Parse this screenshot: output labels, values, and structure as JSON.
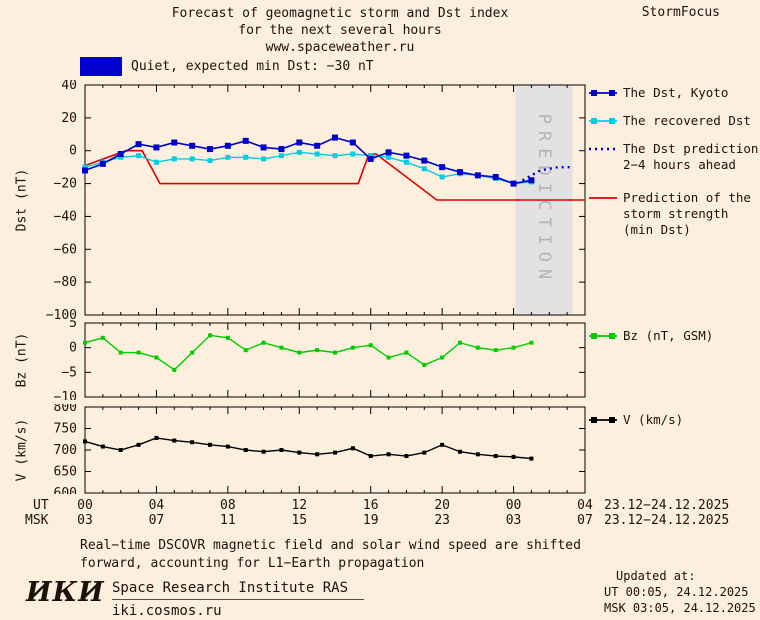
{
  "header": {
    "title_line1": "Forecast of geomagnetic storm and Dst index",
    "title_line2": "for the next several hours",
    "title_line3": "www.spaceweather.ru",
    "brand": "StormFocus"
  },
  "status": {
    "label": "Quiet, expected min Dst: −30 nT",
    "swatch_color": "#0000cc"
  },
  "chart_data": [
    {
      "id": "dst",
      "type": "line",
      "ylabel": "Dst (nT)",
      "ylim": [
        -100,
        40
      ],
      "yticks": [
        40,
        20,
        0,
        -20,
        -40,
        -60,
        -80,
        -100
      ],
      "ytick_labels": [
        "40",
        "20",
        "0",
        "−20",
        "−40",
        "−60",
        "−80",
        "−100"
      ],
      "xlim": [
        0,
        28
      ],
      "band": {
        "x0": 24.1,
        "x1": 27.3,
        "label": "PREDICTION",
        "color": "#e2e2e2",
        "text_color": "#b4b4b4"
      },
      "series": [
        {
          "name": "The Dst, Kyoto",
          "color": "#0000cc",
          "marker": "square",
          "msize": 6,
          "width": 1.6,
          "z": 3,
          "x": [
            0,
            1,
            2,
            3,
            4,
            5,
            6,
            7,
            8,
            9,
            10,
            11,
            12,
            13,
            14,
            15,
            16,
            17,
            18,
            19,
            20,
            21,
            22,
            23,
            24,
            25
          ],
          "y": [
            -12,
            -8,
            -2,
            4,
            2,
            5,
            3,
            1,
            3,
            6,
            2,
            1,
            5,
            3,
            8,
            5,
            -5,
            -1,
            -3,
            -6,
            -10,
            -13,
            -15,
            -16,
            -20,
            -18
          ]
        },
        {
          "name": "The recovered Dst",
          "color": "#00cfe0",
          "marker": "square",
          "msize": 5,
          "width": 1.4,
          "z": 2,
          "x": [
            0,
            1,
            2,
            3,
            4,
            5,
            6,
            7,
            8,
            9,
            10,
            11,
            12,
            13,
            14,
            15,
            16,
            17,
            18,
            19,
            20,
            21,
            22,
            23,
            24,
            25
          ],
          "y": [
            -10,
            -7,
            -4,
            -3,
            -7,
            -5,
            -5,
            -6,
            -4,
            -4,
            -5,
            -3,
            -1,
            -2,
            -3,
            -2,
            -3,
            -4,
            -7,
            -11,
            -16,
            -14,
            -15,
            -17,
            -20,
            -19
          ]
        },
        {
          "name": "The Dst prediction 2−4 hours ahead",
          "color": "#0000cc",
          "marker": null,
          "width": 2.4,
          "dash": "2,4",
          "z": 4,
          "x": [
            24.5,
            25.5,
            26.5,
            27.2
          ],
          "y": [
            -18,
            -12,
            -10,
            -10
          ]
        },
        {
          "name": "Prediction of the storm strength (min Dst)",
          "color": "#dd0000",
          "marker": null,
          "width": 1.6,
          "z": 1,
          "x": [
            0,
            2.3,
            3.2,
            4.2,
            15.3,
            15.9,
            16.3,
            19.7,
            28
          ],
          "y": [
            -9,
            0,
            0,
            -20,
            -20,
            -2,
            -2,
            -30,
            -30
          ]
        }
      ]
    },
    {
      "id": "bz",
      "type": "line",
      "ylabel": "Bz (nT)",
      "ylim": [
        -10,
        5
      ],
      "yticks": [
        5,
        0,
        -5,
        -10
      ],
      "ytick_labels": [
        "5",
        "0",
        "−5",
        "−10"
      ],
      "xlim": [
        0,
        28
      ],
      "series": [
        {
          "name": "Bz (nT, GSM)",
          "color": "#00cc00",
          "marker": "square",
          "msize": 4,
          "width": 1.4,
          "x": [
            0,
            1,
            2,
            3,
            4,
            5,
            6,
            7,
            8,
            9,
            10,
            11,
            12,
            13,
            14,
            15,
            16,
            17,
            18,
            19,
            20,
            21,
            22,
            23,
            24,
            25
          ],
          "y": [
            1,
            2,
            -1,
            -1,
            -2,
            -4.5,
            -1,
            2.5,
            2,
            -0.5,
            1,
            0,
            -1,
            -0.5,
            -1,
            0,
            0.5,
            -2,
            -1,
            -3.5,
            -2,
            1,
            0,
            -0.5,
            0,
            1
          ]
        }
      ]
    },
    {
      "id": "v",
      "type": "line",
      "ylabel": "V (km/s)",
      "ylim": [
        600,
        800
      ],
      "yticks": [
        800,
        750,
        700,
        650,
        600
      ],
      "ytick_labels": [
        "800",
        "750",
        "700",
        "650",
        "600"
      ],
      "xlim": [
        0,
        28
      ],
      "series": [
        {
          "name": "V (km/s)",
          "color": "#000000",
          "marker": "square",
          "msize": 4,
          "width": 1.4,
          "x": [
            0,
            1,
            2,
            3,
            4,
            5,
            6,
            7,
            8,
            9,
            10,
            11,
            12,
            13,
            14,
            15,
            16,
            17,
            18,
            19,
            20,
            21,
            22,
            23,
            24,
            25
          ],
          "y": [
            720,
            708,
            700,
            712,
            728,
            722,
            718,
            712,
            708,
            700,
            696,
            700,
            694,
            690,
            694,
            704,
            686,
            690,
            686,
            694,
            712,
            696,
            690,
            686,
            684,
            680
          ]
        }
      ]
    }
  ],
  "xaxis": {
    "ut_prefix": "UT",
    "msk_prefix": "MSK",
    "tick_hours": [
      0,
      4,
      8,
      12,
      16,
      20,
      24,
      28
    ],
    "ut_labels": [
      "00",
      "04",
      "08",
      "12",
      "16",
      "20",
      "00",
      "04"
    ],
    "msk_labels": [
      "03",
      "07",
      "11",
      "15",
      "19",
      "23",
      "03",
      "07"
    ],
    "ut_date": "23.12−24.12.2025",
    "msk_date": "23.12−24.12.2025"
  },
  "legend": {
    "dst_kyoto": "The Dst, Kyoto",
    "recovered": "The recovered Dst",
    "prediction_l1": "The Dst prediction",
    "prediction_l2": "2−4 hours ahead",
    "storm_l1": "Prediction of the",
    "storm_l2": "storm strength",
    "storm_l3": "(min Dst)",
    "bz": "Bz (nT, GSM)",
    "v": "V (km/s)"
  },
  "footnote": {
    "line1": "Real−time DSCOVR magnetic field and solar wind speed are shifted",
    "line2": "forward, accounting for L1−Earth propagation"
  },
  "footer": {
    "logo": "ИКИ",
    "institute": "Space Research Institute RAS",
    "url": "iki.cosmos.ru",
    "updated_label": "Updated at:",
    "updated_ut": "UT  00:05, 24.12.2025",
    "updated_msk": "MSK 03:05, 24.12.2025"
  }
}
